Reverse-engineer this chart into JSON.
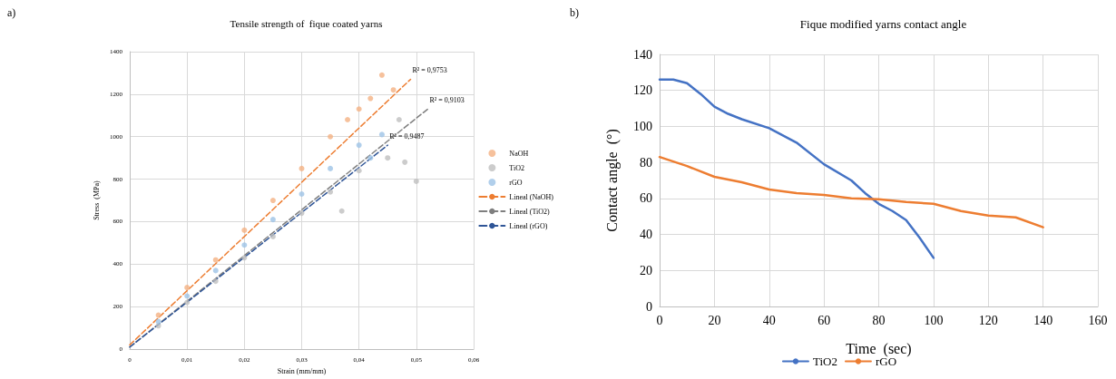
{
  "chart_data": [
    {
      "type": "scatter",
      "title": "Tensile strength of  fique coated yarns",
      "xlabel": "Strain (mm/mm)",
      "ylabel": "Stress  (MPa)",
      "xlim": [
        0,
        0.06
      ],
      "xticks": [
        0,
        {
          "value": 0.01,
          "label": "0,01"
        },
        {
          "value": 0.02,
          "label": "0,02"
        },
        {
          "value": 0.03,
          "label": "0,03"
        },
        {
          "value": 0.04,
          "label": "0,04"
        },
        {
          "value": 0.05,
          "label": "0,05"
        },
        {
          "value": 0.06,
          "label": "0,06"
        }
      ],
      "ylim": [
        0,
        1400
      ],
      "yticks": [
        0,
        200,
        400,
        600,
        800,
        1000,
        1200,
        1400
      ],
      "grid": true,
      "legend": "right",
      "marker": "circle",
      "annotations": [
        "a)",
        {
          "text": "R² = 0,9753",
          "x": 0.049,
          "y": 1270
        },
        {
          "text": "R² = 0,9103",
          "x": 0.052,
          "y": 1130
        },
        {
          "text": "R² = 0,9487",
          "x": 0.045,
          "y": 960
        }
      ],
      "series": [
        {
          "name": "NaOH",
          "color": "#f4b183",
          "x": [
            0.005,
            0.01,
            0.015,
            0.02,
            0.025,
            0.03,
            0.035,
            0.038,
            0.04,
            0.042,
            0.044,
            0.046
          ],
          "values": [
            160,
            290,
            420,
            560,
            700,
            850,
            1000,
            1080,
            1130,
            1180,
            1290,
            1220
          ]
        },
        {
          "name": "TiO2",
          "color": "#bfbfbf",
          "x": [
            0.005,
            0.01,
            0.015,
            0.02,
            0.025,
            0.03,
            0.035,
            0.037,
            0.04,
            0.045,
            0.047,
            0.048,
            0.05
          ],
          "values": [
            110,
            220,
            320,
            430,
            530,
            640,
            740,
            650,
            840,
            900,
            1080,
            880,
            790
          ]
        },
        {
          "name": "rGO",
          "color": "#9dc3e6",
          "x": [
            0.005,
            0.01,
            0.015,
            0.02,
            0.025,
            0.03,
            0.035,
            0.04,
            0.042,
            0.044
          ],
          "values": [
            130,
            250,
            370,
            490,
            610,
            730,
            850,
            960,
            900,
            1010
          ]
        },
        {
          "name": "Lineal (NaOH)",
          "type": "line",
          "marker": "none",
          "line_style": "dashed",
          "color": "#ed7d31",
          "x": [
            0,
            0.049
          ],
          "values": [
            20,
            1270
          ]
        },
        {
          "name": "Lineal (TiO2)",
          "type": "line",
          "marker": "none",
          "line_style": "dashed",
          "color": "#7f7f7f",
          "x": [
            0,
            0.052
          ],
          "values": [
            10,
            1130
          ]
        },
        {
          "name": "Lineal (rGO)",
          "type": "line",
          "marker": "none",
          "line_style": "dashed",
          "color": "#2f5597",
          "x": [
            0,
            0.045
          ],
          "values": [
            10,
            960
          ]
        }
      ]
    },
    {
      "type": "line",
      "title": "Fique modified yarns contact angle",
      "xlabel": "Time  (sec)",
      "ylabel": "Contact angle  (°)",
      "xlim": [
        0,
        160
      ],
      "xticks": [
        0,
        20,
        40,
        60,
        80,
        100,
        120,
        140,
        160
      ],
      "ylim": [
        0,
        140
      ],
      "yticks": [
        0,
        20,
        40,
        60,
        80,
        100,
        120,
        140
      ],
      "grid": true,
      "legend": "bottom",
      "marker": "none",
      "annotations": [
        "b)"
      ],
      "series": [
        {
          "name": "TiO2",
          "color": "#4472c4",
          "x": [
            0,
            5,
            10,
            15,
            20,
            25,
            30,
            40,
            50,
            60,
            70,
            75,
            80,
            85,
            90,
            95,
            100
          ],
          "values": [
            126,
            126,
            124,
            118,
            111,
            107,
            104,
            99,
            91,
            79,
            70,
            63,
            57,
            53,
            48,
            38,
            27
          ]
        },
        {
          "name": "rGO",
          "color": "#ed7d31",
          "x": [
            0,
            10,
            20,
            30,
            40,
            50,
            60,
            70,
            80,
            90,
            100,
            110,
            120,
            130,
            140
          ],
          "values": [
            83,
            78,
            72,
            69,
            65,
            63,
            62,
            60,
            59.5,
            58,
            57,
            53,
            50.5,
            49.5,
            44
          ]
        }
      ]
    }
  ]
}
